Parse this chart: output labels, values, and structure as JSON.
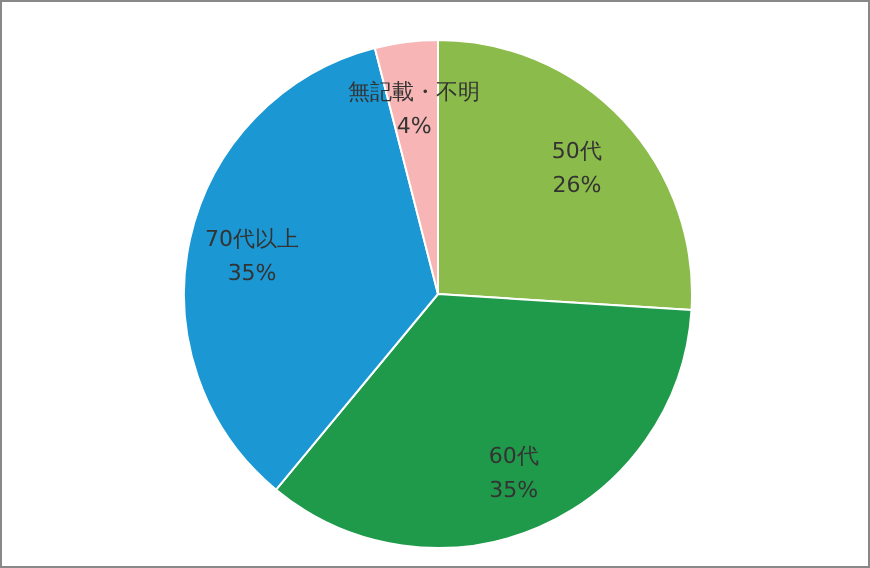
{
  "chart_data": {
    "type": "pie",
    "categories": [
      "50代",
      "60代",
      "70代以上",
      "無記載・不明"
    ],
    "values": [
      26,
      35,
      35,
      4
    ],
    "colors": [
      "#8bbb4a",
      "#1f9a4a",
      "#1b97d3",
      "#f7b5b5"
    ],
    "value_labels": [
      "26%",
      "35%",
      "35%",
      "4%"
    ],
    "legend": false
  }
}
